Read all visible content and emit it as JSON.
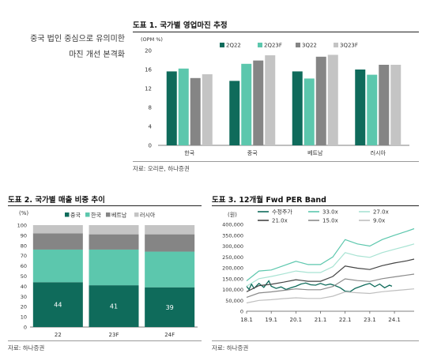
{
  "side_note": {
    "line1": "중국 법인 중심으로 유의미한",
    "line2": "마진 개선 본격화"
  },
  "figures": {
    "fig1_title": "도표 1. 국가별 영업마진 추정",
    "fig1_source": "자료: 오리온, 하나증권",
    "fig2_title": "도표 2. 국가별 매출 비중 추이",
    "fig2_source": "자료: 하나증권",
    "fig3_title": "도표 3. 12개월 Fwd PER Band",
    "fig3_source": "자료: 하나증권"
  },
  "chart_data": [
    {
      "type": "bar",
      "title": "도표 1. 국가별 영업마진 추정",
      "ylabel": "(OPM %)",
      "ylim": [
        0,
        20
      ],
      "yticks": [
        0,
        4,
        8,
        12,
        16,
        20
      ],
      "categories": [
        "한국",
        "중국",
        "베트남",
        "러시아"
      ],
      "series": [
        {
          "name": "2Q22",
          "color": "#0f6b5b",
          "values": [
            15.6,
            13.6,
            15.6,
            16.0
          ]
        },
        {
          "name": "2Q23F",
          "color": "#5cc7ad",
          "values": [
            16.2,
            17.2,
            14.1,
            14.9
          ]
        },
        {
          "name": "3Q22",
          "color": "#858585",
          "values": [
            14.2,
            17.9,
            18.7,
            17.0
          ]
        },
        {
          "name": "3Q23F",
          "color": "#c4c4c4",
          "values": [
            15.0,
            19.0,
            19.1,
            17.0
          ]
        }
      ],
      "legend": "top"
    },
    {
      "type": "bar",
      "stacked": true,
      "title": "도표 2. 국가별 매출 비중 추이",
      "ylabel": "(%)",
      "ylim": [
        0,
        100
      ],
      "yticks": [
        0,
        10,
        20,
        30,
        40,
        50,
        60,
        70,
        80,
        90,
        100
      ],
      "categories": [
        "22",
        "23F",
        "24F"
      ],
      "series": [
        {
          "name": "중국",
          "color": "#0f6b5b",
          "values": [
            44,
            41,
            39
          ],
          "labels": [
            "44",
            "41",
            "39"
          ]
        },
        {
          "name": "한국",
          "color": "#5cc7ad",
          "values": [
            32,
            35,
            35
          ]
        },
        {
          "name": "베트남",
          "color": "#858585",
          "values": [
            16,
            15,
            17
          ]
        },
        {
          "name": "러시아",
          "color": "#c4c4c4",
          "values": [
            8,
            9,
            9
          ]
        }
      ],
      "legend": "top"
    },
    {
      "type": "line",
      "title": "도표 3. 12개월 Fwd PER Band",
      "ylabel": "(원)",
      "ylim": [
        0,
        400000
      ],
      "yticks": [
        "0",
        "50,000",
        "100,000",
        "150,000",
        "200,000",
        "250,000",
        "300,000",
        "350,000",
        "400,000"
      ],
      "ytick_values": [
        0,
        50000,
        100000,
        150000,
        200000,
        250000,
        300000,
        350000,
        400000
      ],
      "x_ticks": [
        "18.1",
        "19.1",
        "20.1",
        "21.1",
        "22.1",
        "23.1",
        "24.1"
      ],
      "x_range": [
        2018.0,
        2024.8
      ],
      "series": [
        {
          "name": "수정주가",
          "color": "#0f6b5b",
          "width": 1.3,
          "points": [
            [
              2018.0,
              115000
            ],
            [
              2018.1,
              100000
            ],
            [
              2018.2,
              125000
            ],
            [
              2018.3,
              105000
            ],
            [
              2018.5,
              128000
            ],
            [
              2018.7,
              110000
            ],
            [
              2018.9,
              140000
            ],
            [
              2019.0,
              115000
            ],
            [
              2019.2,
              105000
            ],
            [
              2019.4,
              112000
            ],
            [
              2019.6,
              100000
            ],
            [
              2019.8,
              108000
            ],
            [
              2020.0,
              115000
            ],
            [
              2020.2,
              125000
            ],
            [
              2020.4,
              130000
            ],
            [
              2020.6,
              122000
            ],
            [
              2020.8,
              120000
            ],
            [
              2021.0,
              128000
            ],
            [
              2021.2,
              120000
            ],
            [
              2021.4,
              125000
            ],
            [
              2021.6,
              118000
            ],
            [
              2021.8,
              108000
            ],
            [
              2022.0,
              92000
            ],
            [
              2022.2,
              90000
            ],
            [
              2022.4,
              105000
            ],
            [
              2022.6,
              113000
            ],
            [
              2022.8,
              122000
            ],
            [
              2023.0,
              128000
            ],
            [
              2023.2,
              113000
            ],
            [
              2023.4,
              125000
            ],
            [
              2023.6,
              108000
            ],
            [
              2023.8,
              120000
            ],
            [
              2023.9,
              115000
            ]
          ]
        },
        {
          "name": "33.0x",
          "color": "#5cc7ad",
          "width": 1.2,
          "points": [
            [
              2018.0,
              140000
            ],
            [
              2018.5,
              185000
            ],
            [
              2019.0,
              190000
            ],
            [
              2019.5,
              210000
            ],
            [
              2020.0,
              230000
            ],
            [
              2020.5,
              215000
            ],
            [
              2021.0,
              215000
            ],
            [
              2021.5,
              250000
            ],
            [
              2022.0,
              330000
            ],
            [
              2022.5,
              310000
            ],
            [
              2023.0,
              300000
            ],
            [
              2023.5,
              330000
            ],
            [
              2024.0,
              350000
            ],
            [
              2024.5,
              368000
            ],
            [
              2024.8,
              380000
            ]
          ]
        },
        {
          "name": "27.0x",
          "color": "#a8e3d3",
          "width": 1.2,
          "points": [
            [
              2018.0,
              115000
            ],
            [
              2018.5,
              150000
            ],
            [
              2019.0,
              160000
            ],
            [
              2019.5,
              172000
            ],
            [
              2020.0,
              185000
            ],
            [
              2020.5,
              178000
            ],
            [
              2021.0,
              178000
            ],
            [
              2021.5,
              205000
            ],
            [
              2022.0,
              270000
            ],
            [
              2022.5,
              255000
            ],
            [
              2023.0,
              248000
            ],
            [
              2023.5,
              270000
            ],
            [
              2024.0,
              285000
            ],
            [
              2024.5,
              300000
            ],
            [
              2024.8,
              310000
            ]
          ]
        },
        {
          "name": "21.0x",
          "color": "#444444",
          "width": 1.2,
          "points": [
            [
              2018.0,
              90000
            ],
            [
              2018.5,
              118000
            ],
            [
              2019.0,
              124000
            ],
            [
              2019.5,
              134000
            ],
            [
              2020.0,
              145000
            ],
            [
              2020.5,
              138000
            ],
            [
              2021.0,
              138000
            ],
            [
              2021.5,
              160000
            ],
            [
              2022.0,
              208000
            ],
            [
              2022.5,
              198000
            ],
            [
              2023.0,
              192000
            ],
            [
              2023.5,
              210000
            ],
            [
              2024.0,
              222000
            ],
            [
              2024.5,
              232000
            ],
            [
              2024.8,
              240000
            ]
          ]
        },
        {
          "name": "15.0x",
          "color": "#8a8a8a",
          "width": 1.2,
          "points": [
            [
              2018.0,
              64000
            ],
            [
              2018.5,
              84000
            ],
            [
              2019.0,
              89000
            ],
            [
              2019.5,
              96000
            ],
            [
              2020.0,
              103000
            ],
            [
              2020.5,
              99000
            ],
            [
              2021.0,
              99000
            ],
            [
              2021.5,
              114000
            ],
            [
              2022.0,
              149000
            ],
            [
              2022.5,
              141000
            ],
            [
              2023.0,
              137000
            ],
            [
              2023.5,
              150000
            ],
            [
              2024.0,
              158000
            ],
            [
              2024.5,
              166000
            ],
            [
              2024.8,
              171000
            ]
          ]
        },
        {
          "name": "9.0x",
          "color": "#bfbfbf",
          "width": 1.2,
          "points": [
            [
              2018.0,
              38000
            ],
            [
              2018.5,
              50000
            ],
            [
              2019.0,
              53000
            ],
            [
              2019.5,
              58000
            ],
            [
              2020.0,
              62000
            ],
            [
              2020.5,
              59000
            ],
            [
              2021.0,
              59000
            ],
            [
              2021.5,
              69000
            ],
            [
              2022.0,
              89000
            ],
            [
              2022.5,
              85000
            ],
            [
              2023.0,
              82000
            ],
            [
              2023.5,
              90000
            ],
            [
              2024.0,
              95000
            ],
            [
              2024.5,
              100000
            ],
            [
              2024.8,
              103000
            ]
          ]
        }
      ],
      "legend": "top"
    }
  ]
}
